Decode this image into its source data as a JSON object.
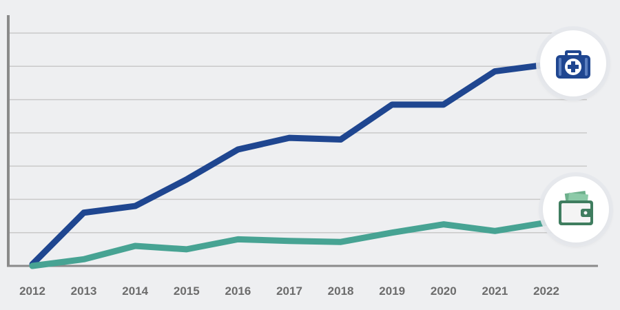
{
  "chart_data": {
    "type": "line",
    "categories": [
      "2012",
      "2013",
      "2014",
      "2015",
      "2016",
      "2017",
      "2018",
      "2019",
      "2020",
      "2021",
      "2022"
    ],
    "ylim": [
      0,
      7
    ],
    "grid": true,
    "series": [
      {
        "values": [
          0.05,
          1.6,
          1.8,
          2.6,
          3.5,
          3.85,
          3.8,
          4.85,
          4.85,
          5.85,
          6.05
        ],
        "color": "#1f4690",
        "icon": "medical-kit-icon"
      },
      {
        "values": [
          0.0,
          0.2,
          0.6,
          0.5,
          0.8,
          0.75,
          0.72,
          1.0,
          1.25,
          1.05,
          1.3
        ],
        "color": "#47a393",
        "icon": "wallet-icon"
      }
    ]
  },
  "colors": {
    "grid": "#c9c9c9",
    "axis": "#8a8a8a",
    "background": "#eeeff1",
    "tick_text": "#6c6c6c"
  }
}
